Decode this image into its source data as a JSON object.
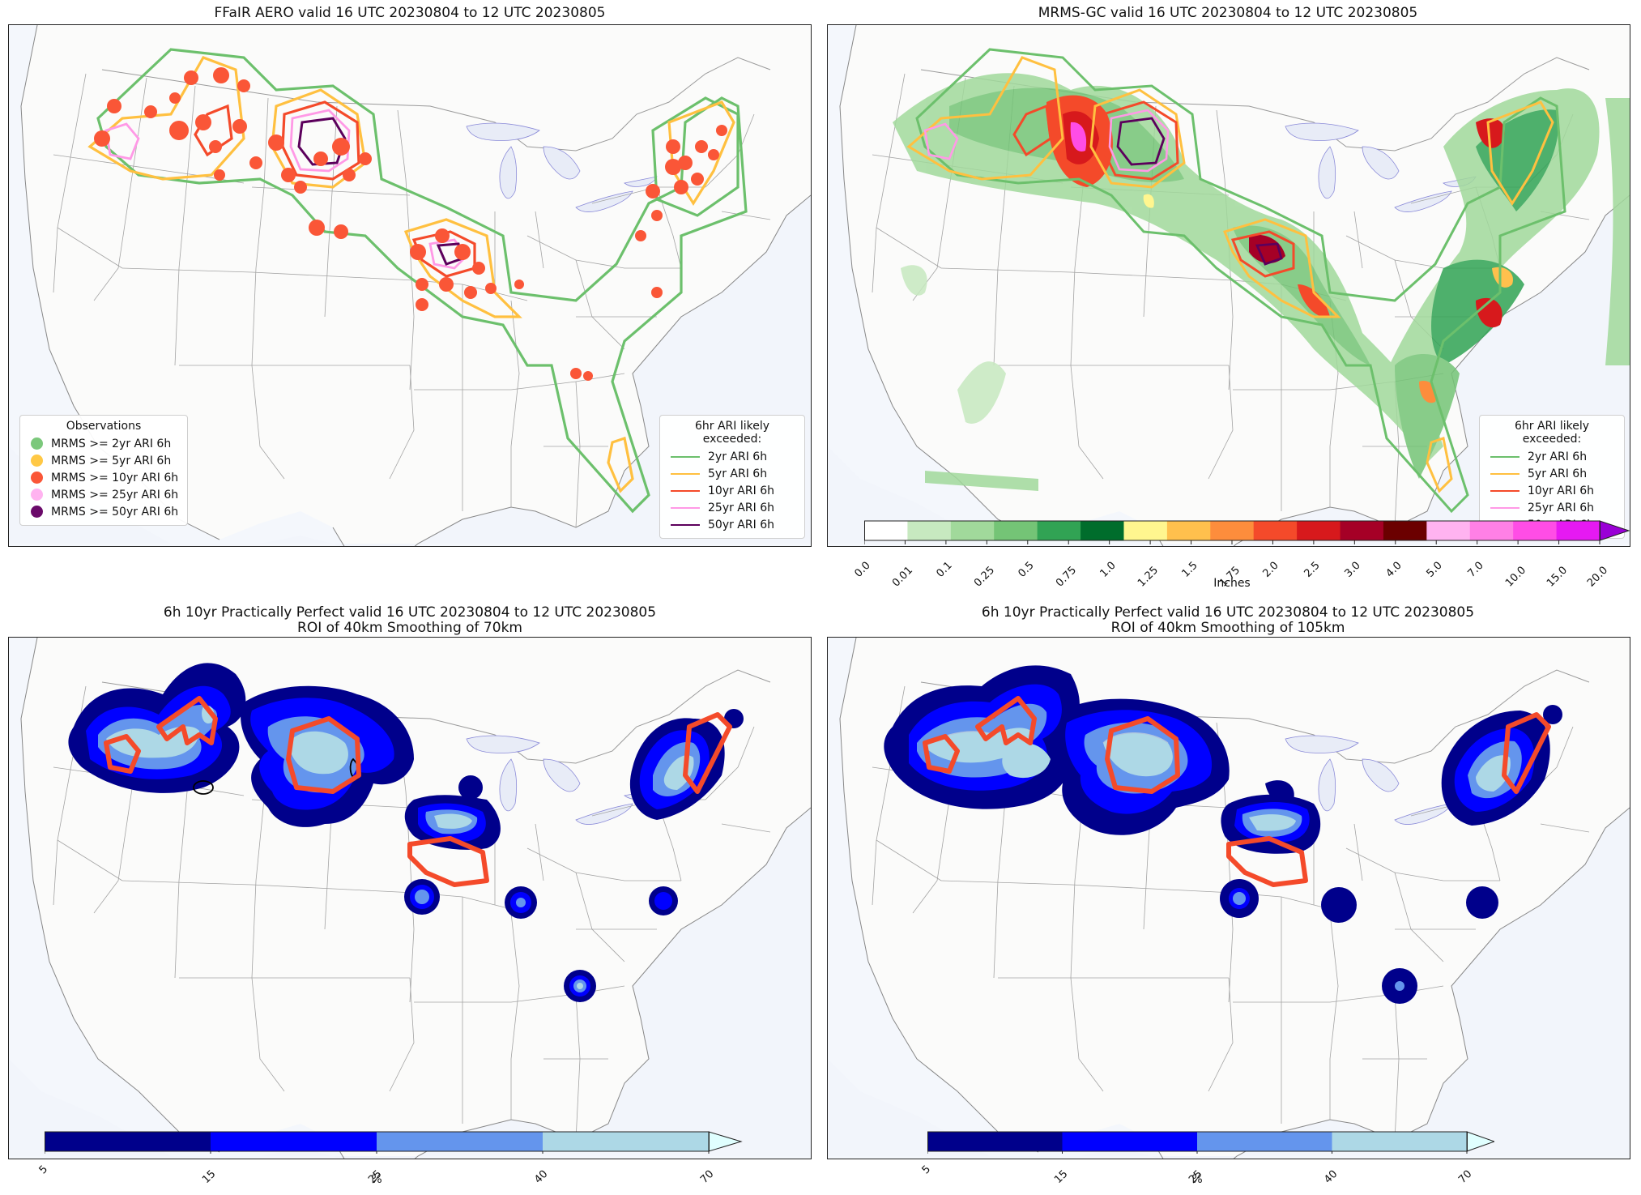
{
  "panels": [
    {
      "title": "FFaIR AERO valid 16 UTC 20230804 to 12 UTC 20230805"
    },
    {
      "title": "MRMS-GC valid 16 UTC 20230804 to 12 UTC 20230805"
    },
    {
      "title": "6h 10yr Practically Perfect valid 16 UTC 20230804 to 12 UTC 20230805",
      "subtitle": "ROI of 40km Smoothing of 70km"
    },
    {
      "title": "6h 10yr Practically Perfect valid 16 UTC 20230804 to 12 UTC 20230805",
      "subtitle": "ROI of 40km Smoothing of 105km"
    }
  ],
  "obs_legend": {
    "title": "Observations",
    "items": [
      {
        "label": "MRMS >= 2yr ARI 6h",
        "color": "#7bc87b"
      },
      {
        "label": "MRMS >= 5yr ARI 6h",
        "color": "#ffc845"
      },
      {
        "label": "MRMS >= 10yr ARI 6h",
        "color": "#fa5637"
      },
      {
        "label": "MRMS >= 25yr ARI 6h",
        "color": "#ffb3f0"
      },
      {
        "label": "MRMS >= 50yr ARI 6h",
        "color": "#6a0a6a"
      }
    ]
  },
  "ari_legend": {
    "title": "6hr ARI likely exceeded:",
    "items": [
      {
        "label": "2yr ARI 6h",
        "color": "#6cc06c"
      },
      {
        "label": "5yr ARI 6h",
        "color": "#ffc040"
      },
      {
        "label": "10yr ARI 6h",
        "color": "#f44a2a"
      },
      {
        "label": "25yr ARI 6h",
        "color": "#ff99e6"
      },
      {
        "label": "50yr ARI 6h",
        "color": "#5c005c"
      }
    ]
  },
  "precip_colorbar": {
    "unit": "Inches",
    "ticks": [
      "0.0",
      "0.01",
      "0.1",
      "0.25",
      "0.5",
      "0.75",
      "1.0",
      "1.25",
      "1.5",
      "1.75",
      "2.0",
      "2.5",
      "3.0",
      "4.0",
      "5.0",
      "7.0",
      "10.0",
      "15.0",
      "20.0"
    ],
    "colors": [
      "#ffffff",
      "#c7e9c0",
      "#a1d99b",
      "#74c476",
      "#31a354",
      "#006d2c",
      "#fff68f",
      "#ffc04d",
      "#fd8d3c",
      "#f44a2a",
      "#d7191c",
      "#a50026",
      "#6b0000",
      "#ffb3f0",
      "#ff80e6",
      "#ff4de6",
      "#e619f2",
      "#9a00d6"
    ]
  },
  "prob_colorbar": {
    "unit": "%",
    "ticks": [
      "5",
      "15",
      "25",
      "40",
      "70"
    ],
    "colors": [
      "#00008b",
      "#0000ff",
      "#6495ed",
      "#add8e6",
      "#e0ffff"
    ]
  }
}
